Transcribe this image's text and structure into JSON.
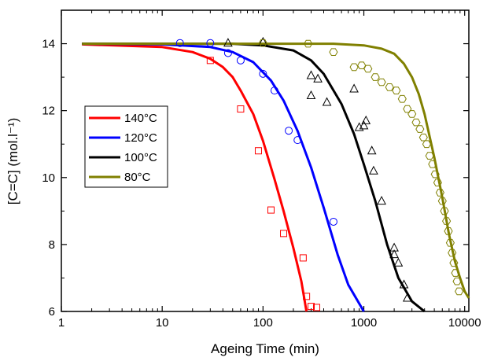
{
  "chart_data": {
    "type": "scatter",
    "title": "",
    "xlabel": "Ageing Time (min)",
    "ylabel": "[C=C] (mol.l⁻¹)",
    "xscale": "log",
    "xlim": [
      1,
      11000
    ],
    "ylim": [
      6,
      15
    ],
    "x_ticks": [
      {
        "value": 1,
        "label": "1"
      },
      {
        "value": 10,
        "label": "10"
      },
      {
        "value": 100,
        "label": "100"
      },
      {
        "value": 1000,
        "label": "1000"
      },
      {
        "value": 10000,
        "label": "10000"
      }
    ],
    "y_ticks": [
      {
        "value": 6,
        "label": "6"
      },
      {
        "value": 8,
        "label": "8"
      },
      {
        "value": 10,
        "label": "10"
      },
      {
        "value": 12,
        "label": "12"
      },
      {
        "value": 14,
        "label": "14"
      }
    ],
    "grid": false,
    "legend_position": "left-middle",
    "series": [
      {
        "name": "140°C",
        "color": "#ff0000",
        "marker": "square",
        "points": [
          [
            30,
            13.5
          ],
          [
            60,
            12.05
          ],
          [
            90,
            10.8
          ],
          [
            120,
            9.03
          ],
          [
            160,
            8.33
          ],
          [
            250,
            7.6
          ],
          [
            270,
            6.45
          ],
          [
            300,
            6.15
          ],
          [
            340,
            6.12
          ]
        ],
        "fit": [
          [
            1.6,
            13.98
          ],
          [
            10,
            13.9
          ],
          [
            20,
            13.75
          ],
          [
            30,
            13.55
          ],
          [
            40,
            13.3
          ],
          [
            50,
            13.0
          ],
          [
            60,
            12.6
          ],
          [
            80,
            11.9
          ],
          [
            100,
            11.1
          ],
          [
            130,
            9.95
          ],
          [
            160,
            9.0
          ],
          [
            200,
            7.9
          ],
          [
            240,
            6.9
          ],
          [
            270,
            6.0
          ]
        ]
      },
      {
        "name": "120°C",
        "color": "#0000ff",
        "marker": "circle",
        "points": [
          [
            15,
            14.02
          ],
          [
            30,
            14.02
          ],
          [
            45,
            13.72
          ],
          [
            60,
            13.5
          ],
          [
            100,
            13.1
          ],
          [
            130,
            12.6
          ],
          [
            180,
            11.4
          ],
          [
            220,
            11.12
          ],
          [
            500,
            8.68
          ]
        ],
        "fit": [
          [
            1.6,
            14.0
          ],
          [
            10,
            13.98
          ],
          [
            30,
            13.9
          ],
          [
            50,
            13.75
          ],
          [
            80,
            13.45
          ],
          [
            120,
            12.9
          ],
          [
            160,
            12.3
          ],
          [
            220,
            11.4
          ],
          [
            300,
            10.3
          ],
          [
            400,
            9.1
          ],
          [
            550,
            7.7
          ],
          [
            700,
            6.8
          ],
          [
            1000,
            6.0
          ]
        ]
      },
      {
        "name": "100°C",
        "color": "#000000",
        "marker": "triangle",
        "points": [
          [
            45,
            14.02
          ],
          [
            100,
            14.05
          ],
          [
            300,
            13.05
          ],
          [
            350,
            12.95
          ],
          [
            300,
            12.45
          ],
          [
            430,
            12.25
          ],
          [
            800,
            12.65
          ],
          [
            900,
            11.5
          ],
          [
            1000,
            11.55
          ],
          [
            1050,
            11.7
          ],
          [
            1200,
            10.8
          ],
          [
            1250,
            10.2
          ],
          [
            1500,
            9.3
          ],
          [
            2000,
            7.9
          ],
          [
            2000,
            7.7
          ],
          [
            2200,
            7.45
          ],
          [
            2500,
            6.8
          ],
          [
            2700,
            6.4
          ]
        ],
        "fit": [
          [
            1.6,
            14.0
          ],
          [
            50,
            14.0
          ],
          [
            100,
            13.95
          ],
          [
            200,
            13.8
          ],
          [
            300,
            13.5
          ],
          [
            400,
            13.1
          ],
          [
            600,
            12.2
          ],
          [
            800,
            11.3
          ],
          [
            1000,
            10.4
          ],
          [
            1300,
            9.3
          ],
          [
            1700,
            8.0
          ],
          [
            2200,
            7.0
          ],
          [
            3000,
            6.3
          ],
          [
            4000,
            6.0
          ]
        ]
      },
      {
        "name": "80°C",
        "color": "#808000",
        "marker": "hexagon",
        "points": [
          [
            100,
            14.02
          ],
          [
            280,
            14.0
          ],
          [
            500,
            13.75
          ],
          [
            800,
            13.3
          ],
          [
            950,
            13.35
          ],
          [
            1100,
            13.25
          ],
          [
            1300,
            13.0
          ],
          [
            1500,
            12.85
          ],
          [
            1800,
            12.7
          ],
          [
            2100,
            12.6
          ],
          [
            2400,
            12.35
          ],
          [
            2700,
            12.05
          ],
          [
            3000,
            11.9
          ],
          [
            3300,
            11.65
          ],
          [
            3600,
            11.45
          ],
          [
            3900,
            11.2
          ],
          [
            4200,
            11.0
          ],
          [
            4500,
            10.65
          ],
          [
            4800,
            10.4
          ],
          [
            5100,
            10.1
          ],
          [
            5400,
            9.85
          ],
          [
            5700,
            9.55
          ],
          [
            6000,
            9.3
          ],
          [
            6300,
            9.0
          ],
          [
            6600,
            8.7
          ],
          [
            6900,
            8.4
          ],
          [
            7200,
            8.05
          ],
          [
            7500,
            7.75
          ],
          [
            7800,
            7.45
          ],
          [
            8100,
            7.15
          ],
          [
            8400,
            6.9
          ],
          [
            8800,
            6.6
          ]
        ],
        "fit": [
          [
            1.6,
            14.0
          ],
          [
            500,
            14.0
          ],
          [
            1000,
            13.95
          ],
          [
            1500,
            13.85
          ],
          [
            2000,
            13.7
          ],
          [
            2500,
            13.4
          ],
          [
            3000,
            13.0
          ],
          [
            3500,
            12.5
          ],
          [
            4000,
            11.9
          ],
          [
            5000,
            10.6
          ],
          [
            6000,
            9.4
          ],
          [
            7000,
            8.3
          ],
          [
            8000,
            7.5
          ],
          [
            9000,
            7.0
          ],
          [
            10000,
            6.6
          ],
          [
            11000,
            6.4
          ]
        ]
      }
    ]
  }
}
